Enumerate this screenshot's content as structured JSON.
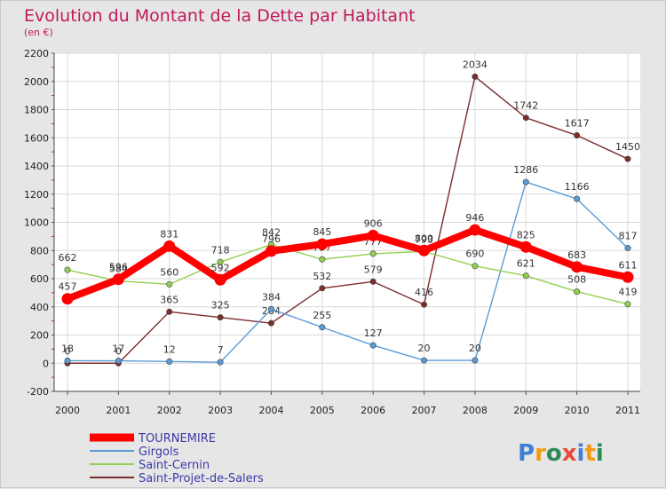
{
  "chart_data": {
    "type": "line",
    "title": "Evolution du Montant de la Dette par Habitant",
    "subtitle": "(en €)",
    "x": [
      "2000",
      "2001",
      "2002",
      "2003",
      "2004",
      "2005",
      "2006",
      "2007",
      "2008",
      "2009",
      "2010",
      "2011"
    ],
    "ylim": [
      -200,
      2200
    ],
    "yticks": [
      -200,
      0,
      200,
      400,
      600,
      800,
      1000,
      1200,
      1400,
      1600,
      1800,
      2000,
      2200
    ],
    "grid": true,
    "legend_position": "bottom-left",
    "series": [
      {
        "name": "TOURNEMIRE",
        "color": "#ff0000",
        "values": [
          457,
          596,
          831,
          592,
          796,
          845,
          906,
          800,
          946,
          825,
          683,
          611
        ]
      },
      {
        "name": "Girgols",
        "color": "#5b9bd5",
        "values": [
          18,
          17,
          12,
          7,
          384,
          255,
          127,
          20,
          20,
          1286,
          1166,
          817
        ]
      },
      {
        "name": "Saint-Cernin",
        "color": "#92d050",
        "values": [
          662,
          584,
          560,
          718,
          842,
          737,
          777,
          793,
          690,
          621,
          508,
          419
        ]
      },
      {
        "name": "Saint-Projet-de-Salers",
        "color": "#7b2c2c",
        "values": [
          0,
          0,
          365,
          325,
          284,
          532,
          579,
          416,
          2034,
          1742,
          1617,
          1450
        ]
      }
    ]
  },
  "brand": {
    "text": "Proxiti",
    "letters": [
      "P",
      "r",
      "o",
      "x",
      "i",
      "t",
      "i"
    ],
    "colors": [
      "#3f7fd6",
      "#f39c12",
      "#2e8b57",
      "#e74c3c",
      "#3f7fd6",
      "#f39c12",
      "#2e8b57"
    ]
  }
}
